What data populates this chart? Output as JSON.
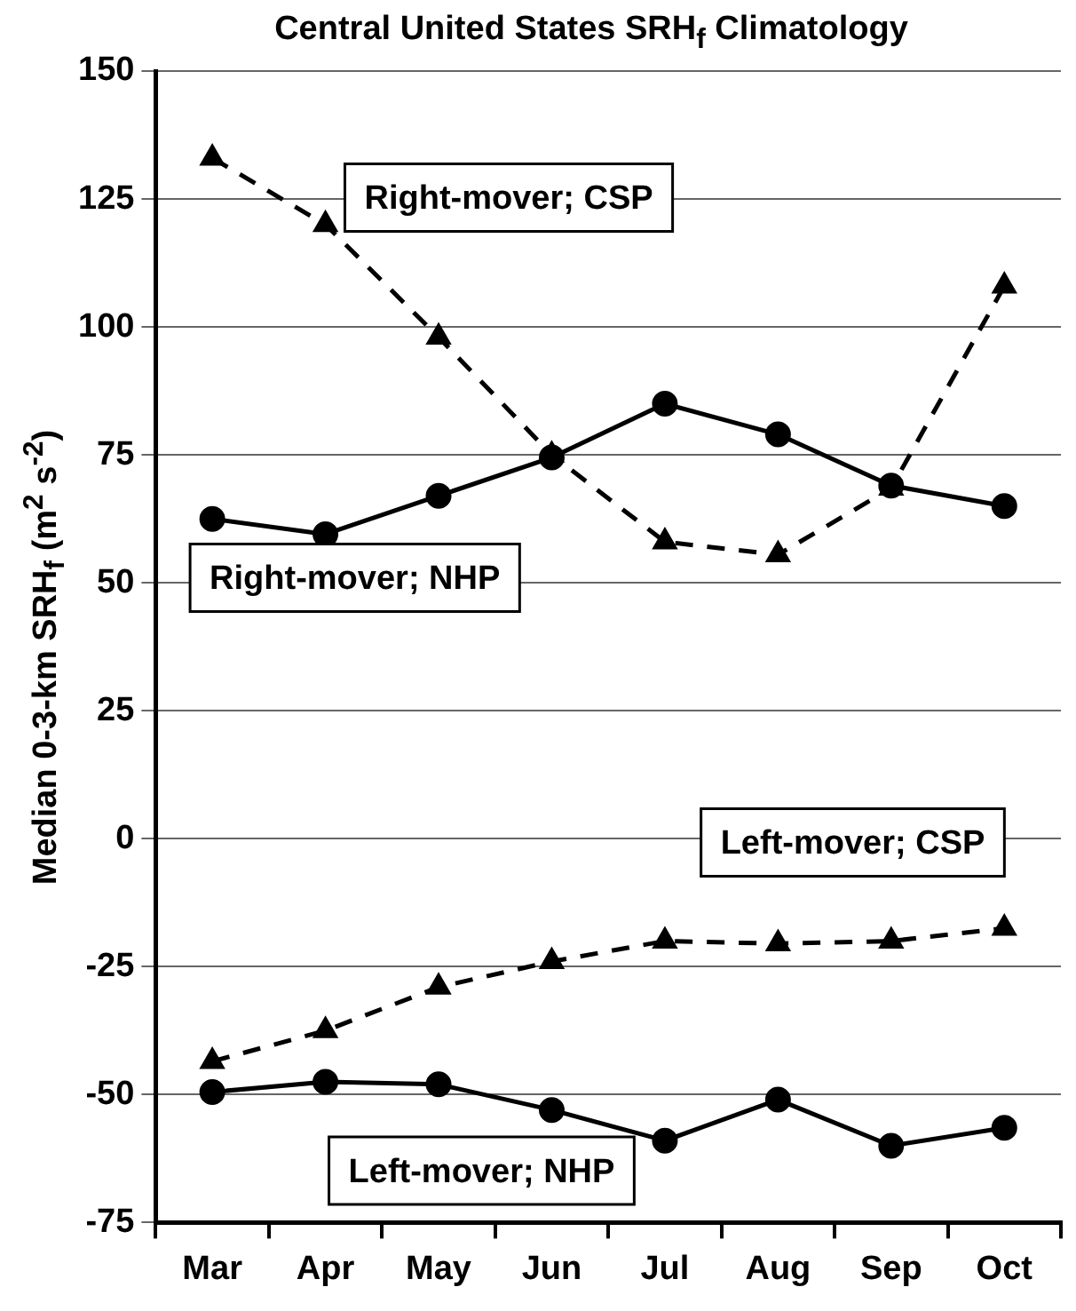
{
  "chart_data": {
    "type": "line",
    "title": "Central United States SRH$_{f}$ Climatology",
    "ylabel": "Median 0-3-km SRH$_{f}$ (m$^{2}$ s$^{-2}$)",
    "categories": [
      "Mar",
      "Apr",
      "May",
      "Jun",
      "Jul",
      "Aug",
      "Sep",
      "Oct"
    ],
    "series": [
      {
        "name": "Right-mover; CSP",
        "color": "#000000",
        "marker": "triangle",
        "line_style": "dashed",
        "values": [
          133,
          120,
          98,
          75,
          58,
          55.5,
          68.5,
          108
        ]
      },
      {
        "name": "Right-mover; NHP",
        "color": "#000000",
        "marker": "circle",
        "line_style": "solid",
        "values": [
          62.5,
          59.5,
          67,
          74.5,
          85,
          79,
          69,
          65
        ]
      },
      {
        "name": "Left-mover; CSP",
        "color": "#000000",
        "marker": "triangle",
        "line_style": "dashed",
        "values": [
          -43.5,
          -37.5,
          -29,
          -24,
          -20,
          -20.5,
          -20,
          -17.5
        ]
      },
      {
        "name": "Left-mover; NHP",
        "color": "#000000",
        "marker": "circle",
        "line_style": "solid",
        "values": [
          -49.5,
          -47.5,
          -48,
          -53,
          -59,
          -51,
          -60,
          -56.5
        ]
      }
    ],
    "ylim": [
      -75,
      150
    ],
    "yticks": [
      -75,
      -50,
      -25,
      0,
      25,
      50,
      75,
      100,
      125,
      150
    ],
    "grid": "y",
    "legend": false
  }
}
